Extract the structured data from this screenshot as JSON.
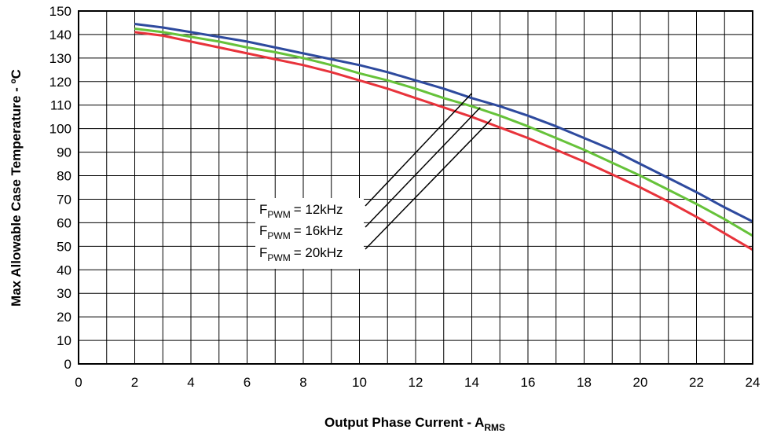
{
  "chart_data": {
    "type": "line",
    "xlabel": "Output Phase Current - A",
    "xlabel_sub": "RMS",
    "ylabel": "Max Allowable Case Temperature - ºC",
    "xlim": [
      0,
      24
    ],
    "ylim": [
      0,
      150
    ],
    "x_ticks": [
      0,
      2,
      4,
      6,
      8,
      10,
      12,
      14,
      16,
      18,
      20,
      22,
      24
    ],
    "y_ticks": [
      0,
      10,
      20,
      30,
      40,
      50,
      60,
      70,
      80,
      90,
      100,
      110,
      120,
      130,
      140,
      150
    ],
    "x_minor_step": 1,
    "grid": true,
    "series": [
      {
        "name": "F PWM = 12kHz",
        "name_main": "F",
        "name_sub": "PWM",
        "name_value": "= 12kHz",
        "color": "#2e4a9e",
        "x": [
          2,
          3,
          4,
          5,
          6,
          7,
          8,
          9,
          10,
          11,
          12,
          13,
          14,
          15,
          16,
          17,
          18,
          19,
          20,
          21,
          22,
          23,
          24
        ],
        "y": [
          144.5,
          143,
          141,
          139,
          137,
          134.5,
          132,
          129.5,
          127,
          124,
          120.5,
          117,
          113,
          109.5,
          105.5,
          101,
          96,
          91,
          85,
          79,
          73,
          66.5,
          60.5
        ]
      },
      {
        "name": "F PWM = 16kHz",
        "name_main": "F",
        "name_sub": "PWM",
        "name_value": "= 16kHz",
        "color": "#66c23a",
        "x": [
          2,
          3,
          4,
          5,
          6,
          7,
          8,
          9,
          10,
          11,
          12,
          13,
          14,
          15,
          16,
          17,
          18,
          19,
          20,
          21,
          22,
          23,
          24
        ],
        "y": [
          142.5,
          141,
          139,
          137,
          134.5,
          132.5,
          130,
          127,
          123.5,
          120.5,
          117,
          113,
          109.5,
          105.5,
          101,
          96,
          91,
          85.5,
          80,
          74,
          68,
          61.5,
          54.5
        ]
      },
      {
        "name": "F PWM = 20kHz",
        "name_main": "F",
        "name_sub": "PWM",
        "name_value": "= 20kHz",
        "color": "#e8333b",
        "x": [
          2,
          3,
          4,
          5,
          6,
          7,
          8,
          9,
          10,
          11,
          12,
          13,
          14,
          15,
          16,
          17,
          18,
          19,
          20,
          21,
          22,
          23,
          24
        ],
        "y": [
          141,
          139.5,
          137,
          134.5,
          132,
          129.5,
          127,
          124,
          120.5,
          117,
          113,
          109,
          105,
          100.5,
          96,
          91,
          86,
          80.5,
          75,
          69,
          62.5,
          55.5,
          48.5
        ]
      }
    ],
    "annotation": {
      "type": "legend-callout",
      "placement": "center",
      "leader_targets": [
        {
          "x": 14.0,
          "y": 115
        },
        {
          "x": 14.3,
          "y": 109
        },
        {
          "x": 14.7,
          "y": 104
        }
      ]
    }
  }
}
